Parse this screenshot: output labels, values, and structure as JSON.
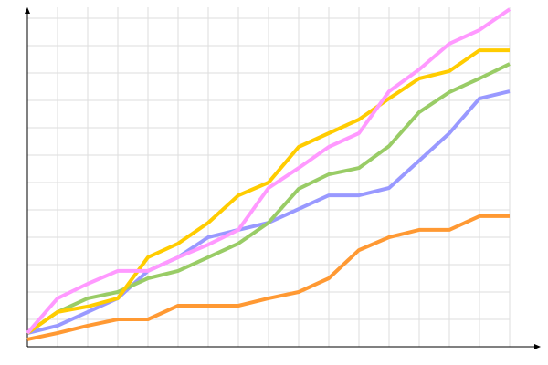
{
  "chart_data": {
    "type": "line",
    "x": [
      0,
      1,
      2,
      3,
      4,
      5,
      6,
      7,
      8,
      9,
      10,
      11,
      12,
      13,
      14,
      15,
      16
    ],
    "series": [
      {
        "color": "#ff9933",
        "values": [
          0.27,
          0.5,
          0.77,
          1.0,
          1.0,
          1.5,
          1.5,
          1.5,
          1.77,
          2.0,
          2.5,
          3.53,
          4.0,
          4.27,
          4.27,
          4.77,
          4.77
        ]
      },
      {
        "color": "#9999ff",
        "values": [
          0.5,
          0.77,
          1.27,
          1.77,
          2.77,
          3.27,
          4.0,
          4.27,
          4.53,
          5.03,
          5.53,
          5.53,
          5.8,
          6.8,
          7.8,
          9.07,
          9.33
        ]
      },
      {
        "color": "#99cc66",
        "values": [
          0.5,
          1.27,
          1.77,
          2.0,
          2.5,
          2.77,
          3.27,
          3.77,
          4.53,
          5.77,
          6.3,
          6.53,
          7.33,
          8.57,
          9.3,
          9.8,
          10.33
        ]
      },
      {
        "color": "#ffcc00",
        "values": [
          0.5,
          1.27,
          1.47,
          1.77,
          3.27,
          3.77,
          4.53,
          5.53,
          6.0,
          7.3,
          7.8,
          8.3,
          9.07,
          9.8,
          10.07,
          10.83,
          10.83
        ]
      },
      {
        "color": "#ff99ff",
        "values": [
          0.5,
          1.77,
          2.3,
          2.77,
          2.77,
          3.27,
          3.73,
          4.27,
          5.8,
          6.53,
          7.3,
          7.8,
          9.33,
          10.13,
          11.07,
          11.57,
          12.33
        ]
      }
    ],
    "xlim": [
      0,
      16
    ],
    "xticks": [
      0,
      1,
      2,
      3,
      4,
      5,
      6,
      7,
      8,
      9,
      10,
      11,
      12,
      13,
      14,
      15,
      16
    ],
    "ylim": [
      0,
      12.4
    ],
    "yticks": [
      0,
      1,
      2,
      3,
      4,
      5,
      6,
      7,
      8,
      9,
      10,
      11,
      12
    ],
    "grid": true
  }
}
